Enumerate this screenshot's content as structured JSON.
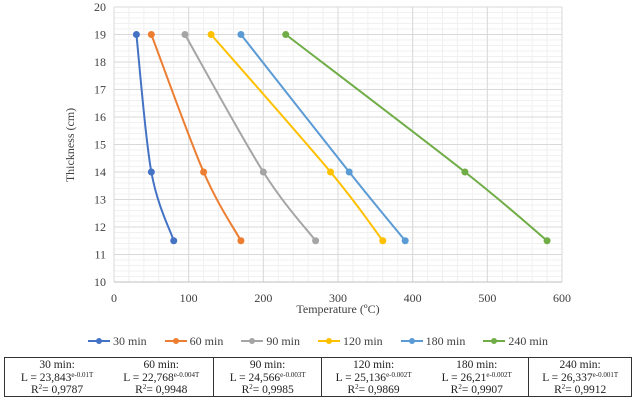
{
  "chart_data": {
    "type": "line",
    "title": "",
    "xlabel": "Temperature (ºC)",
    "ylabel": "Thickness (cm)",
    "xlim": [
      0,
      600
    ],
    "ylim": [
      10,
      20
    ],
    "xticks": [
      "0",
      "100",
      "200",
      "300",
      "400",
      "500",
      "600"
    ],
    "yticks": [
      "10",
      "11",
      "12",
      "13",
      "14",
      "15",
      "16",
      "17",
      "18",
      "19",
      "20"
    ],
    "grid": true,
    "legend_position": "bottom",
    "series": [
      {
        "name": "30 min",
        "color": "#4472C4",
        "points": [
          [
            30,
            19
          ],
          [
            50,
            14
          ],
          [
            80,
            11.5
          ]
        ]
      },
      {
        "name": "60 min",
        "color": "#ED7D31",
        "points": [
          [
            50,
            19
          ],
          [
            120,
            14
          ],
          [
            170,
            11.5
          ]
        ]
      },
      {
        "name": "90 min",
        "color": "#A5A5A5",
        "points": [
          [
            95,
            19
          ],
          [
            200,
            14
          ],
          [
            270,
            11.5
          ]
        ]
      },
      {
        "name": "120 min",
        "color": "#FFC000",
        "points": [
          [
            130,
            19
          ],
          [
            290,
            14
          ],
          [
            360,
            11.5
          ]
        ]
      },
      {
        "name": "180 min",
        "color": "#5B9BD5",
        "points": [
          [
            170,
            19
          ],
          [
            315,
            14
          ],
          [
            390,
            11.5
          ]
        ]
      },
      {
        "name": "240 min",
        "color": "#70AD47",
        "points": [
          [
            230,
            19
          ],
          [
            470,
            14
          ],
          [
            580,
            11.5
          ]
        ]
      }
    ]
  },
  "equations": [
    {
      "group": [
        {
          "label": "30 min:",
          "eq_base": "L = 23,843",
          "eq_exp": "e-0.01T",
          "r2_label": "R",
          "r2_sup": "2",
          "r2_value": "= 0,9787"
        },
        {
          "label": "60 min:",
          "eq_base": "L = 22,768",
          "eq_exp": "e-0.004T",
          "r2_label": "R",
          "r2_sup": "2",
          "r2_value": "= 0,9948"
        }
      ]
    },
    {
      "group": [
        {
          "label": "90 min:",
          "eq_base": "L = 24,566",
          "eq_exp": "e-0.003T",
          "r2_label": "R",
          "r2_sup": "2",
          "r2_value": "= 0,9985"
        }
      ]
    },
    {
      "group": [
        {
          "label": "120 min:",
          "eq_base": "L = 25,136",
          "eq_exp": "e-0.002T",
          "r2_label": "R",
          "r2_sup": "2",
          "r2_value": "= 0,9869"
        },
        {
          "label": "180 min:",
          "eq_base": "L = 26,21",
          "eq_exp": "e-0.002T",
          "r2_label": "R",
          "r2_sup": "2",
          "r2_value": "= 0,9907"
        }
      ]
    },
    {
      "group": [
        {
          "label": "240 min:",
          "eq_base": "L = 26,337",
          "eq_exp": "e-0.001T",
          "r2_label": "R",
          "r2_sup": "2",
          "r2_value": "= 0,9912"
        }
      ]
    }
  ]
}
